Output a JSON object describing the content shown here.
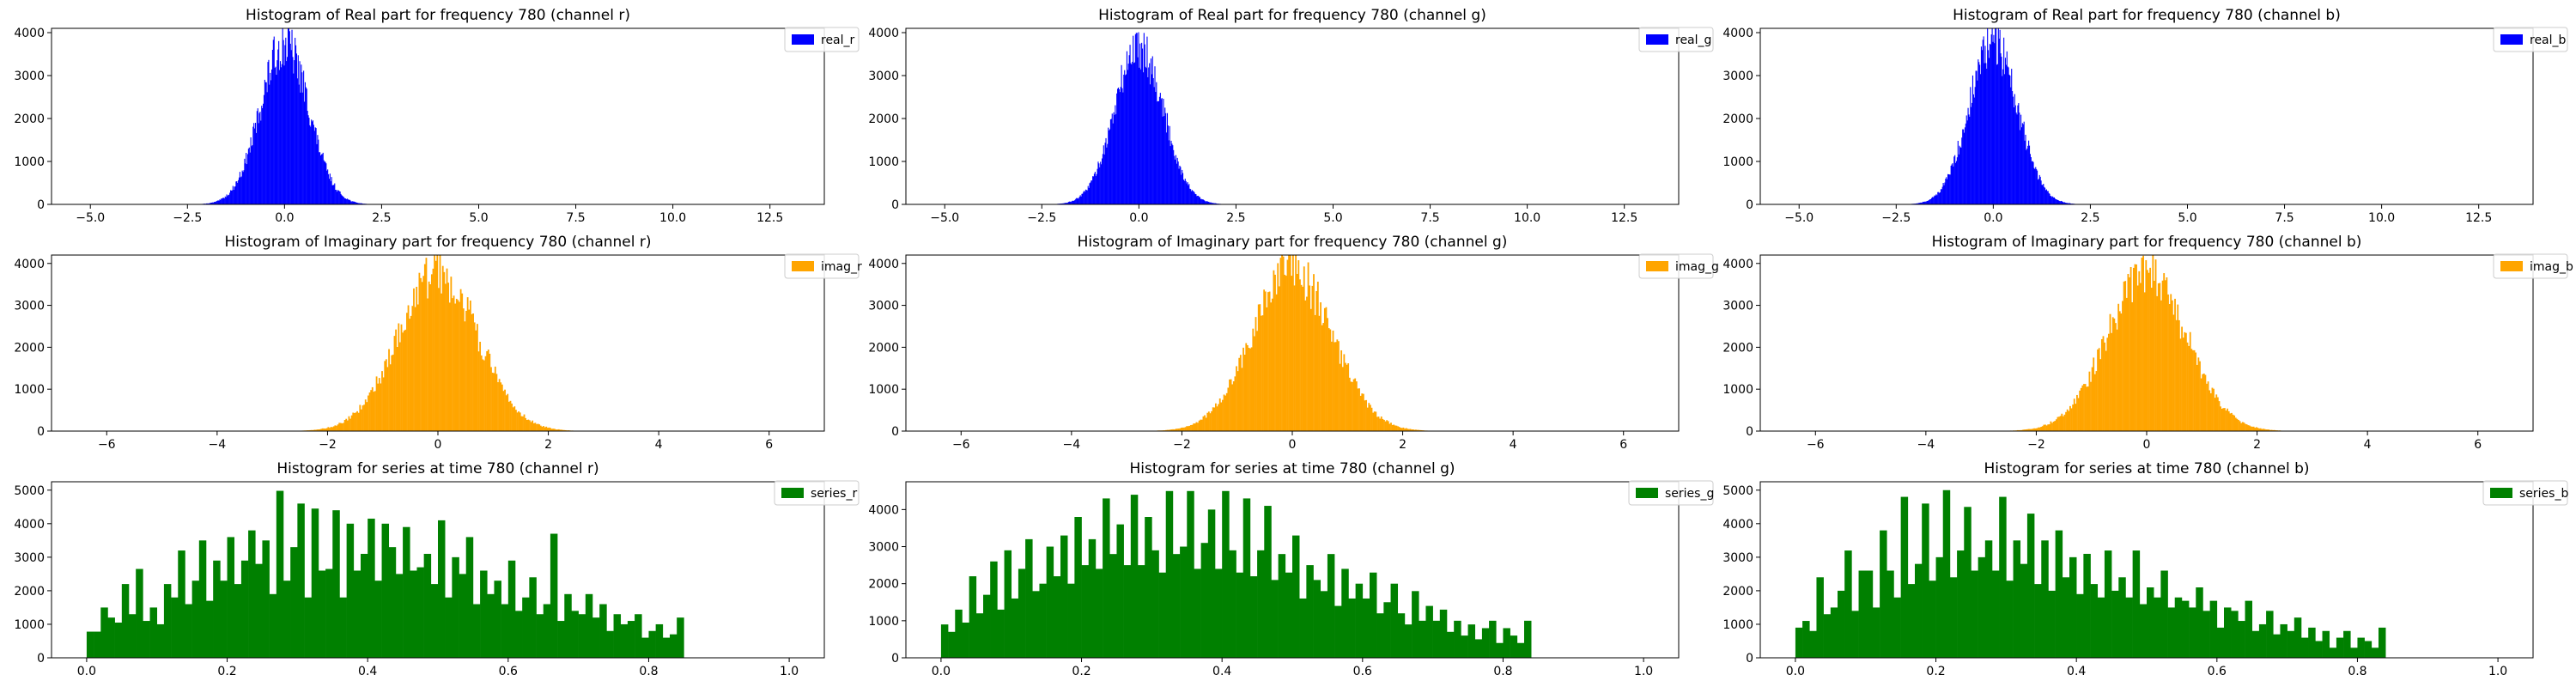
{
  "colors": {
    "real": "#0000ff",
    "imag": "#ffa500",
    "series": "#008000"
  },
  "chart_data": [
    {
      "type": "bar",
      "row": 0,
      "col": 0,
      "title": "Histogram of Real part for frequency 780 (channel r)",
      "series_name": "real_r",
      "color_key": "real",
      "xlim": [
        -6.0,
        13.9
      ],
      "ylim": [
        0,
        4100
      ],
      "xticks": [
        -5.0,
        -2.5,
        0.0,
        2.5,
        5.0,
        7.5,
        10.0,
        12.5
      ],
      "xtick_labels": [
        "−5.0",
        "−2.5",
        "0.0",
        "2.5",
        "5.0",
        "7.5",
        "10.0",
        "12.5"
      ],
      "yticks": [
        0,
        1000,
        2000,
        3000,
        4000
      ],
      "ytick_labels": [
        "0",
        "1000",
        "2000",
        "3000",
        "4000"
      ],
      "distribution": {
        "kind": "gaussian",
        "center": 0.0,
        "sigma": 0.62,
        "peak": 3850,
        "range": [
          -3.2,
          3.2
        ],
        "bin_width": 0.02
      }
    },
    {
      "type": "bar",
      "row": 0,
      "col": 1,
      "title": "Histogram of Real part for frequency 780 (channel g)",
      "series_name": "real_g",
      "color_key": "real",
      "xlim": [
        -6.0,
        13.9
      ],
      "ylim": [
        0,
        4100
      ],
      "xticks": [
        -5.0,
        -2.5,
        0.0,
        2.5,
        5.0,
        7.5,
        10.0,
        12.5
      ],
      "xtick_labels": [
        "−5.0",
        "−2.5",
        "0.0",
        "2.5",
        "5.0",
        "7.5",
        "10.0",
        "12.5"
      ],
      "yticks": [
        0,
        1000,
        2000,
        3000,
        4000
      ],
      "ytick_labels": [
        "0",
        "1000",
        "2000",
        "3000",
        "4000"
      ],
      "distribution": {
        "kind": "gaussian",
        "center": 0.0,
        "sigma": 0.62,
        "peak": 3800,
        "range": [
          -3.2,
          3.2
        ],
        "bin_width": 0.02
      }
    },
    {
      "type": "bar",
      "row": 0,
      "col": 2,
      "title": "Histogram of Real part for frequency 780 (channel b)",
      "series_name": "real_b",
      "color_key": "real",
      "xlim": [
        -6.0,
        13.9
      ],
      "ylim": [
        0,
        4100
      ],
      "xticks": [
        -5.0,
        -2.5,
        0.0,
        2.5,
        5.0,
        7.5,
        10.0,
        12.5
      ],
      "xtick_labels": [
        "−5.0",
        "−2.5",
        "0.0",
        "2.5",
        "5.0",
        "7.5",
        "10.0",
        "12.5"
      ],
      "yticks": [
        0,
        1000,
        2000,
        3000,
        4000
      ],
      "ytick_labels": [
        "0",
        "1000",
        "2000",
        "3000",
        "4000"
      ],
      "distribution": {
        "kind": "gaussian",
        "center": 0.0,
        "sigma": 0.62,
        "peak": 3900,
        "range": [
          -3.2,
          3.2
        ],
        "bin_width": 0.02
      }
    },
    {
      "type": "bar",
      "row": 1,
      "col": 0,
      "title": "Histogram of Imaginary part for frequency 780 (channel r)",
      "series_name": "imag_r",
      "color_key": "imag",
      "xlim": [
        -7.0,
        7.0
      ],
      "ylim": [
        0,
        4200
      ],
      "xticks": [
        -6,
        -4,
        -2,
        0,
        2,
        4,
        6
      ],
      "xtick_labels": [
        "−6",
        "−4",
        "−2",
        "0",
        "2",
        "4",
        "6"
      ],
      "yticks": [
        0,
        1000,
        2000,
        3000,
        4000
      ],
      "ytick_labels": [
        "0",
        "1000",
        "2000",
        "3000",
        "4000"
      ],
      "distribution": {
        "kind": "gaussian",
        "center": 0.0,
        "sigma": 0.72,
        "peak": 3900,
        "range": [
          -4.5,
          4.5
        ],
        "bin_width": 0.025
      }
    },
    {
      "type": "bar",
      "row": 1,
      "col": 1,
      "title": "Histogram of Imaginary part for frequency 780 (channel g)",
      "series_name": "imag_g",
      "color_key": "imag",
      "xlim": [
        -7.0,
        7.0
      ],
      "ylim": [
        0,
        4200
      ],
      "xticks": [
        -6,
        -4,
        -2,
        0,
        2,
        4,
        6
      ],
      "xtick_labels": [
        "−6",
        "−4",
        "−2",
        "0",
        "2",
        "4",
        "6"
      ],
      "yticks": [
        0,
        1000,
        2000,
        3000,
        4000
      ],
      "ytick_labels": [
        "0",
        "1000",
        "2000",
        "3000",
        "4000"
      ],
      "distribution": {
        "kind": "gaussian",
        "center": 0.0,
        "sigma": 0.72,
        "peak": 3950,
        "range": [
          -4.5,
          4.5
        ],
        "bin_width": 0.025
      }
    },
    {
      "type": "bar",
      "row": 1,
      "col": 2,
      "title": "Histogram of Imaginary part for frequency 780 (channel b)",
      "series_name": "imag_b",
      "color_key": "imag",
      "xlim": [
        -7.0,
        7.0
      ],
      "ylim": [
        0,
        4200
      ],
      "xticks": [
        -6,
        -4,
        -2,
        0,
        2,
        4,
        6
      ],
      "xtick_labels": [
        "−6",
        "−4",
        "−2",
        "0",
        "2",
        "4",
        "6"
      ],
      "yticks": [
        0,
        1000,
        2000,
        3000,
        4000
      ],
      "ytick_labels": [
        "0",
        "1000",
        "2000",
        "3000",
        "4000"
      ],
      "distribution": {
        "kind": "gaussian",
        "center": 0.0,
        "sigma": 0.72,
        "peak": 3850,
        "range": [
          -4.5,
          4.5
        ],
        "bin_width": 0.025
      }
    },
    {
      "type": "bar",
      "row": 2,
      "col": 0,
      "title": "Histogram for series at time 780 (channel r)",
      "series_name": "series_r",
      "color_key": "series",
      "xlim": [
        -0.05,
        1.05
      ],
      "ylim": [
        0,
        5250
      ],
      "xticks": [
        0.0,
        0.2,
        0.4,
        0.6,
        0.8,
        1.0
      ],
      "xtick_labels": [
        "0.0",
        "0.2",
        "0.4",
        "0.6",
        "0.8",
        "1.0"
      ],
      "yticks": [
        0,
        1000,
        2000,
        3000,
        4000,
        5000
      ],
      "ytick_labels": [
        "0",
        "1000",
        "2000",
        "3000",
        "4000",
        "5000"
      ],
      "bin_start": 0.0,
      "bin_width": 0.01,
      "values": [
        780,
        780,
        1500,
        1200,
        1050,
        2200,
        1300,
        2650,
        1100,
        1500,
        1000,
        2200,
        1800,
        3200,
        1600,
        2300,
        3500,
        1700,
        2900,
        2300,
        3600,
        2200,
        2900,
        3800,
        2800,
        3500,
        1900,
        4980,
        2300,
        3300,
        4600,
        1800,
        4450,
        2600,
        2650,
        4400,
        1800,
        4000,
        2600,
        3100,
        4150,
        2300,
        4000,
        3300,
        2500,
        3900,
        2600,
        2700,
        3100,
        2200,
        4100,
        1800,
        3000,
        2500,
        3600,
        1600,
        2600,
        1900,
        2300,
        1600,
        2900,
        1400,
        1800,
        2400,
        1300,
        1600,
        3700,
        1100,
        1900,
        1400,
        1300,
        1900,
        1200,
        1600,
        800,
        1300,
        1000,
        1100,
        1300,
        600,
        800,
        1000,
        600,
        700,
        1200
      ],
      "values_bins_note": ""
    },
    {
      "type": "bar",
      "row": 2,
      "col": 1,
      "title": "Histogram for series at time 780 (channel g)",
      "series_name": "series_g",
      "color_key": "series",
      "xlim": [
        -0.05,
        1.05
      ],
      "ylim": [
        0,
        4750
      ],
      "xticks": [
        0.0,
        0.2,
        0.4,
        0.6,
        0.8,
        1.0
      ],
      "xtick_labels": [
        "0.0",
        "0.2",
        "0.4",
        "0.6",
        "0.8",
        "1.0"
      ],
      "yticks": [
        0,
        1000,
        2000,
        3000,
        4000
      ],
      "ytick_labels": [
        "0",
        "1000",
        "2000",
        "3000",
        "4000"
      ],
      "bin_start": 0.0,
      "bin_width": 0.01,
      "values": [
        900,
        700,
        1300,
        950,
        2200,
        1200,
        1700,
        2600,
        1300,
        2900,
        1600,
        2400,
        3200,
        1800,
        2000,
        3000,
        2200,
        3300,
        2000,
        3800,
        2500,
        3200,
        2400,
        4300,
        2800,
        3600,
        2500,
        4400,
        2500,
        3800,
        2900,
        2300,
        4500,
        2800,
        3000,
        4500,
        2400,
        3100,
        4000,
        2400,
        4500,
        2900,
        2300,
        4300,
        2200,
        2900,
        4100,
        2100,
        2800,
        2300,
        3300,
        1600,
        2500,
        2100,
        1800,
        2800,
        1400,
        2400,
        1600,
        2000,
        1600,
        2300,
        1200,
        1500,
        2000,
        1200,
        900,
        1800,
        1000,
        1400,
        1000,
        1300,
        700,
        1000,
        600,
        900,
        500,
        800,
        1000,
        400,
        800,
        600,
        400,
        1000
      ],
      "values_bins_note": ""
    },
    {
      "type": "bar",
      "row": 2,
      "col": 2,
      "title": "Histogram for series at time 780 (channel b)",
      "series_name": "series_b",
      "color_key": "series",
      "xlim": [
        -0.05,
        1.05
      ],
      "ylim": [
        0,
        5250
      ],
      "xticks": [
        0.0,
        0.2,
        0.4,
        0.6,
        0.8,
        1.0
      ],
      "xtick_labels": [
        "0.0",
        "0.2",
        "0.4",
        "0.6",
        "0.8",
        "1.0"
      ],
      "yticks": [
        0,
        1000,
        2000,
        3000,
        4000,
        5000
      ],
      "ytick_labels": [
        "0",
        "1000",
        "2000",
        "3000",
        "4000",
        "5000"
      ],
      "bin_start": 0.0,
      "bin_width": 0.01,
      "values": [
        900,
        1100,
        800,
        2400,
        1300,
        1500,
        2000,
        3200,
        1400,
        2600,
        2600,
        1500,
        3800,
        2600,
        1800,
        4800,
        2200,
        2800,
        4600,
        2300,
        3000,
        5000,
        2400,
        3200,
        4500,
        2600,
        3000,
        3500,
        2600,
        4800,
        2300,
        3500,
        2800,
        4300,
        2200,
        3500,
        2000,
        3800,
        2400,
        3000,
        1900,
        3100,
        2200,
        1800,
        3200,
        2000,
        2400,
        1800,
        3200,
        1600,
        2100,
        1800,
        2600,
        1500,
        1800,
        1700,
        1500,
        2100,
        1400,
        1700,
        900,
        1500,
        1400,
        1100,
        1700,
        800,
        1000,
        1400,
        700,
        1000,
        800,
        1200,
        600,
        900,
        500,
        800,
        300,
        600,
        800,
        300,
        600,
        500,
        300,
        900
      ],
      "values_bins_note": ""
    }
  ]
}
